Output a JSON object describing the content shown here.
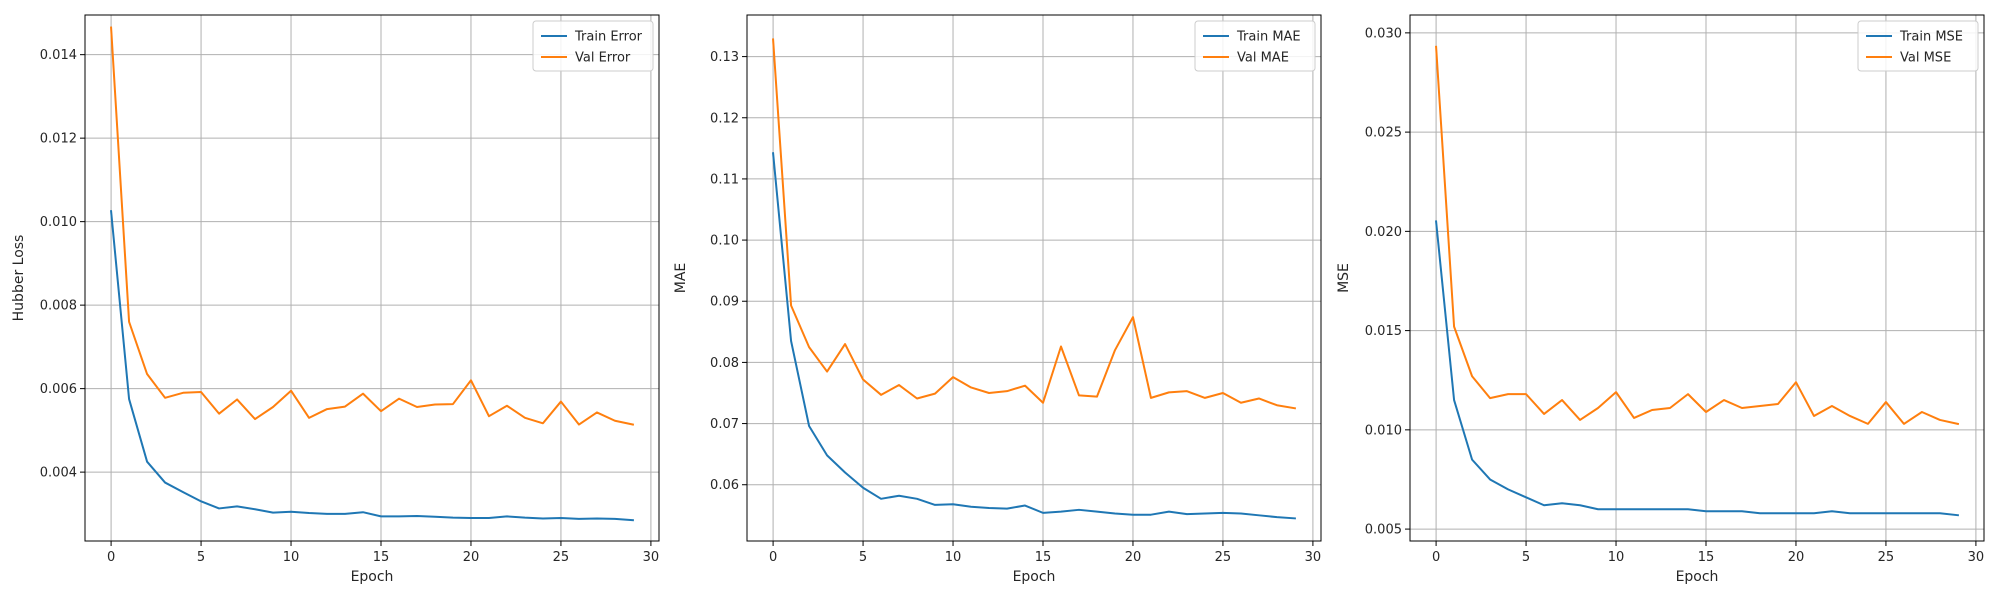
{
  "chart_data": [
    {
      "type": "line",
      "title": "",
      "xlabel": "Epoch",
      "ylabel": "Hubber Loss",
      "xlim": [
        -1.45,
        30.45
      ],
      "ylim": [
        0.00235,
        0.01495
      ],
      "xticks": [
        0,
        5,
        10,
        15,
        20,
        25,
        30
      ],
      "xtick_labels": [
        "0",
        "5",
        "10",
        "15",
        "20",
        "25",
        "30"
      ],
      "yticks": [
        0.004,
        0.006,
        0.008,
        0.01,
        0.012,
        0.014
      ],
      "ytick_labels": [
        "0.004",
        "0.006",
        "0.008",
        "0.010",
        "0.012",
        "0.014"
      ],
      "grid": true,
      "legend_position": "top-right",
      "x": [
        0,
        1,
        2,
        3,
        4,
        5,
        6,
        7,
        8,
        9,
        10,
        11,
        12,
        13,
        14,
        15,
        16,
        17,
        18,
        19,
        20,
        21,
        22,
        23,
        24,
        25,
        26,
        27,
        28,
        29
      ],
      "series": [
        {
          "name": "Train Error",
          "color": "#1f77b4",
          "values": [
            0.01025,
            0.00575,
            0.00425,
            0.00375,
            0.00352,
            0.0033,
            0.00313,
            0.00318,
            0.00311,
            0.00303,
            0.00305,
            0.00302,
            0.003,
            0.003,
            0.00304,
            0.00294,
            0.00294,
            0.00295,
            0.00293,
            0.00291,
            0.0029,
            0.0029,
            0.00294,
            0.00291,
            0.00289,
            0.0029,
            0.00288,
            0.00289,
            0.00288,
            0.00285
          ]
        },
        {
          "name": "Val Error",
          "color": "#ff7f0e",
          "values": [
            0.01465,
            0.0076,
            0.00635,
            0.00578,
            0.0059,
            0.00592,
            0.0054,
            0.00574,
            0.00527,
            0.00556,
            0.00595,
            0.0053,
            0.00551,
            0.00557,
            0.00588,
            0.00546,
            0.00576,
            0.00556,
            0.00562,
            0.00563,
            0.0062,
            0.00534,
            0.00559,
            0.0053,
            0.00517,
            0.00569,
            0.00514,
            0.00543,
            0.00523,
            0.00514
          ]
        }
      ]
    },
    {
      "type": "line",
      "title": "",
      "xlabel": "Epoch",
      "ylabel": "MAE",
      "xlim": [
        -1.45,
        30.45
      ],
      "ylim": [
        0.0508,
        0.1368
      ],
      "xticks": [
        0,
        5,
        10,
        15,
        20,
        25,
        30
      ],
      "xtick_labels": [
        "0",
        "5",
        "10",
        "15",
        "20",
        "25",
        "30"
      ],
      "yticks": [
        0.06,
        0.07,
        0.08,
        0.09,
        0.1,
        0.11,
        0.12,
        0.13
      ],
      "ytick_labels": [
        "0.06",
        "0.07",
        "0.08",
        "0.09",
        "0.10",
        "0.11",
        "0.12",
        "0.13"
      ],
      "grid": true,
      "legend_position": "top-right",
      "x": [
        0,
        1,
        2,
        3,
        4,
        5,
        6,
        7,
        8,
        9,
        10,
        11,
        12,
        13,
        14,
        15,
        16,
        17,
        18,
        19,
        20,
        21,
        22,
        23,
        24,
        25,
        26,
        27,
        28,
        29
      ],
      "series": [
        {
          "name": "Train MAE",
          "color": "#1f77b4",
          "values": [
            0.1142,
            0.0835,
            0.0696,
            0.0648,
            0.062,
            0.0595,
            0.0577,
            0.0582,
            0.0577,
            0.0567,
            0.0568,
            0.0564,
            0.0562,
            0.0561,
            0.0566,
            0.0554,
            0.0556,
            0.0559,
            0.0556,
            0.0553,
            0.0551,
            0.0551,
            0.0556,
            0.0552,
            0.0553,
            0.0554,
            0.0553,
            0.055,
            0.0547,
            0.0545
          ]
        },
        {
          "name": "Val MAE",
          "color": "#ff7f0e",
          "values": [
            0.1328,
            0.0893,
            0.0825,
            0.0785,
            0.083,
            0.0772,
            0.0747,
            0.0763,
            0.0741,
            0.0749,
            0.0776,
            0.0759,
            0.075,
            0.0753,
            0.0762,
            0.0734,
            0.0826,
            0.0746,
            0.0744,
            0.082,
            0.0874,
            0.0742,
            0.0751,
            0.0753,
            0.0742,
            0.075,
            0.0734,
            0.0741,
            0.073,
            0.0725
          ]
        }
      ]
    },
    {
      "type": "line",
      "title": "",
      "xlabel": "Epoch",
      "ylabel": "MSE",
      "xlim": [
        -1.45,
        30.45
      ],
      "ylim": [
        0.0044,
        0.0309
      ],
      "xticks": [
        0,
        5,
        10,
        15,
        20,
        25,
        30
      ],
      "xtick_labels": [
        "0",
        "5",
        "10",
        "15",
        "20",
        "25",
        "30"
      ],
      "yticks": [
        0.005,
        0.01,
        0.015,
        0.02,
        0.025,
        0.03
      ],
      "ytick_labels": [
        "0.005",
        "0.010",
        "0.015",
        "0.020",
        "0.025",
        "0.030"
      ],
      "grid": true,
      "legend_position": "top-right",
      "x": [
        0,
        1,
        2,
        3,
        4,
        5,
        6,
        7,
        8,
        9,
        10,
        11,
        12,
        13,
        14,
        15,
        16,
        17,
        18,
        19,
        20,
        21,
        22,
        23,
        24,
        25,
        26,
        27,
        28,
        29
      ],
      "series": [
        {
          "name": "Train MSE",
          "color": "#1f77b4",
          "values": [
            0.0205,
            0.0115,
            0.0085,
            0.0075,
            0.007,
            0.0066,
            0.0062,
            0.0063,
            0.0062,
            0.006,
            0.006,
            0.006,
            0.006,
            0.006,
            0.006,
            0.0059,
            0.0059,
            0.0059,
            0.0058,
            0.0058,
            0.0058,
            0.0058,
            0.0059,
            0.0058,
            0.0058,
            0.0058,
            0.0058,
            0.0058,
            0.0058,
            0.0057
          ]
        },
        {
          "name": "Val MSE",
          "color": "#ff7f0e",
          "values": [
            0.0293,
            0.0152,
            0.0127,
            0.0116,
            0.0118,
            0.0118,
            0.0108,
            0.0115,
            0.0105,
            0.0111,
            0.0119,
            0.0106,
            0.011,
            0.0111,
            0.0118,
            0.0109,
            0.0115,
            0.0111,
            0.0112,
            0.0113,
            0.0124,
            0.0107,
            0.0112,
            0.0107,
            0.0103,
            0.0114,
            0.0103,
            0.0109,
            0.0105,
            0.0103
          ]
        }
      ]
    }
  ]
}
